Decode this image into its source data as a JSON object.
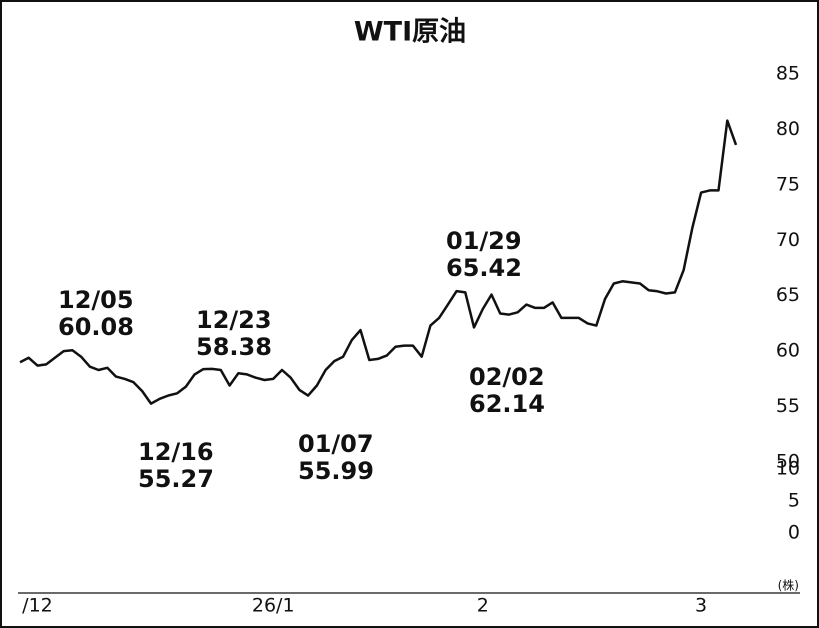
{
  "chart_data": {
    "type": "line",
    "title": "WTI原油",
    "categories": [
      null,
      null,
      "/12",
      null,
      null,
      null,
      null,
      null,
      null,
      null,
      null,
      null,
      null,
      null,
      null,
      null,
      null,
      null,
      null,
      null,
      null,
      null,
      null,
      null,
      null,
      null,
      null,
      null,
      null,
      "26/1",
      null,
      null,
      null,
      null,
      null,
      null,
      null,
      null,
      null,
      null,
      null,
      null,
      null,
      null,
      null,
      null,
      null,
      null,
      null,
      null,
      null,
      null,
      null,
      "2",
      null,
      null,
      null,
      null,
      null,
      null,
      null,
      null,
      null,
      null,
      null,
      null,
      null,
      null,
      null,
      null,
      null,
      null,
      null,
      null,
      null,
      null,
      null,
      null,
      "3",
      null,
      null,
      null,
      null
    ],
    "series": [
      {
        "color": "#111111",
        "values": [
          59.0,
          59.4,
          58.7,
          58.8,
          59.4,
          60.0,
          60.08,
          59.5,
          58.6,
          58.3,
          58.5,
          57.7,
          57.5,
          57.2,
          56.4,
          55.27,
          55.7,
          56.0,
          56.2,
          56.8,
          57.9,
          58.38,
          58.4,
          58.3,
          56.9,
          58.0,
          57.9,
          57.6,
          57.4,
          57.5,
          58.3,
          57.6,
          56.5,
          55.99,
          56.9,
          58.3,
          59.1,
          59.5,
          61.0,
          61.9,
          59.2,
          59.3,
          59.6,
          60.4,
          60.5,
          60.5,
          59.5,
          62.3,
          63.0,
          64.2,
          65.42,
          65.3,
          62.14,
          63.8,
          65.1,
          63.4,
          63.3,
          63.5,
          64.2,
          63.9,
          63.9,
          64.4,
          63.0,
          63.0,
          63.0,
          62.5,
          62.3,
          64.7,
          66.1,
          66.3,
          66.2,
          66.1,
          65.5,
          65.4,
          65.2,
          65.3,
          67.3,
          71.1,
          74.3,
          74.5,
          74.5,
          80.8,
          78.6
        ]
      }
    ],
    "ylim": [
      50,
      85
    ],
    "yticks": [
      50,
      55,
      60,
      65,
      70,
      75,
      80,
      85
    ],
    "y2lim": [
      0,
      10
    ],
    "y2ticks": [
      0,
      5,
      10
    ],
    "y2label": "(株)",
    "annotations": [
      {
        "label": "12/05",
        "value": 60.08
      },
      {
        "label": "12/16",
        "value": 55.27
      },
      {
        "label": "12/23",
        "value": 58.38
      },
      {
        "label": "01/07",
        "value": 55.99
      },
      {
        "label": "01/29",
        "value": 65.42
      },
      {
        "label": "02/02",
        "value": 62.14
      }
    ]
  }
}
